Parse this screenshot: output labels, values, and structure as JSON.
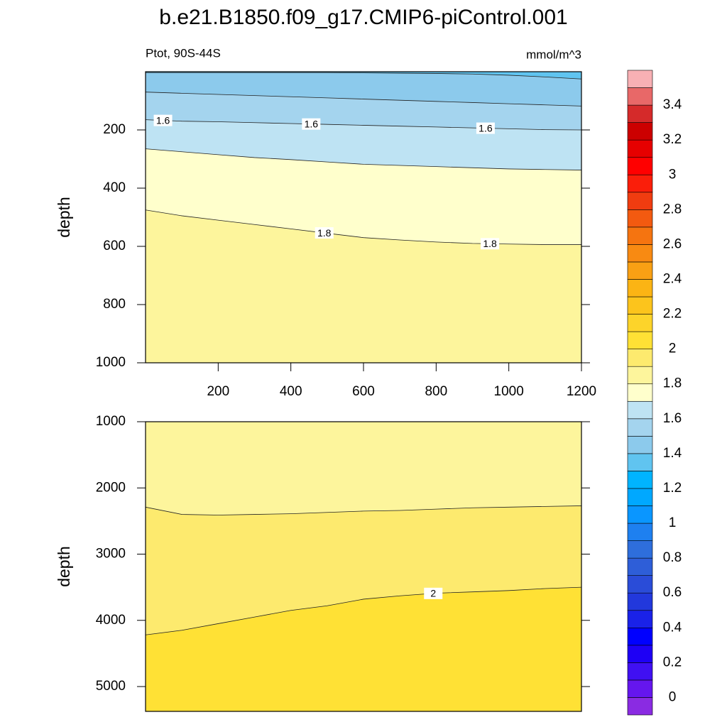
{
  "title": "b.e21.B1850.f09_g17.CMIP6-piControl.001",
  "colorbar": {
    "levels": [
      0,
      0.1,
      0.2,
      0.3,
      0.4,
      0.5,
      0.6,
      0.7,
      0.8,
      0.9,
      1,
      1.1,
      1.2,
      1.3,
      1.4,
      1.5,
      1.6,
      1.7,
      1.8,
      1.9,
      2,
      2.1,
      2.2,
      2.3,
      2.4,
      2.5,
      2.6,
      2.7,
      2.8,
      2.9,
      3,
      3.1,
      3.2,
      3.3,
      3.4,
      3.5
    ],
    "colors": [
      "#8a2be2",
      "#6516ee",
      "#4010f2",
      "#1e00f5",
      "#0000ff",
      "#1a22e8",
      "#2238dc",
      "#2a4cd8",
      "#2e5ed8",
      "#2e6edc",
      "#1e80f0",
      "#0a96ff",
      "#00a8ff",
      "#00b4ff",
      "#60c4f0",
      "#8ccaec",
      "#a4d4ee",
      "#bee3f3",
      "#ffffcc",
      "#fdf59c",
      "#fdea6e",
      "#ffe135",
      "#fdd42a",
      "#fcc41c",
      "#fbb414",
      "#f9a014",
      "#f88a12",
      "#f57410",
      "#f35a10",
      "#f03c10",
      "#fa1e0a",
      "#ff0000",
      "#e60000",
      "#cc0000",
      "#d52a2a",
      "#e86868",
      "#f8b0b4"
    ]
  },
  "chart_data": [
    {
      "type": "contour",
      "left_string": "Ptot, 90S-44S",
      "right_string": "mmol/m^3",
      "ylabel": "depth",
      "xlim": [
        0,
        1200
      ],
      "xticks": [
        200,
        400,
        600,
        800,
        1000,
        1200
      ],
      "ylim": [
        0,
        1000
      ],
      "yticks": [
        200,
        400,
        600,
        800,
        1000
      ],
      "y_reversed": true,
      "x": [
        0,
        100,
        200,
        300,
        400,
        500,
        600,
        700,
        800,
        900,
        1000,
        1100,
        1200
      ],
      "contours": [
        {
          "level": 1.4,
          "values": [
            3,
            3,
            3,
            3,
            3,
            3,
            4,
            5,
            6,
            8,
            12,
            18,
            25
          ]
        },
        {
          "level": 1.5,
          "values": [
            70,
            74,
            78,
            82,
            86,
            90,
            94,
            98,
            102,
            106,
            110,
            114,
            118
          ]
        },
        {
          "level": 1.6,
          "values": [
            165,
            170,
            172,
            175,
            178,
            181,
            184,
            187,
            190,
            193,
            196,
            199,
            200
          ]
        },
        {
          "level": 1.7,
          "values": [
            265,
            275,
            285,
            295,
            302,
            310,
            318,
            322,
            326,
            330,
            334,
            336,
            338
          ]
        },
        {
          "level": 1.8,
          "values": [
            475,
            495,
            510,
            525,
            540,
            555,
            570,
            578,
            585,
            590,
            592,
            594,
            594
          ]
        }
      ]
    },
    {
      "type": "contour",
      "ylabel": "depth",
      "xlim": [
        0,
        1200
      ],
      "ylim": [
        1000,
        5375
      ],
      "yticks": [
        1000,
        2000,
        3000,
        4000,
        5000
      ],
      "y_reversed": true,
      "x": [
        0,
        100,
        200,
        300,
        400,
        500,
        600,
        700,
        800,
        900,
        1000,
        1100,
        1200
      ],
      "contours": [
        {
          "level": 1.9,
          "values": [
            2290,
            2400,
            2410,
            2400,
            2390,
            2370,
            2350,
            2340,
            2320,
            2300,
            2290,
            2280,
            2270
          ]
        },
        {
          "level": 2,
          "values": [
            4220,
            4150,
            4050,
            3950,
            3850,
            3780,
            3680,
            3630,
            3590,
            3570,
            3550,
            3520,
            3500
          ]
        }
      ]
    }
  ]
}
